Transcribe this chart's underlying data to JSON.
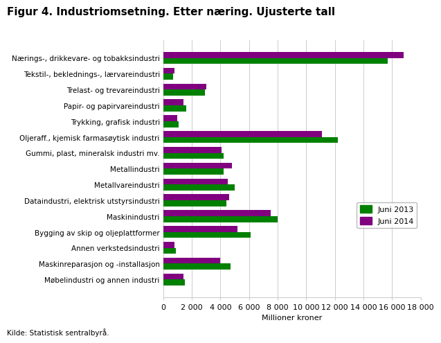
{
  "title": "Figur 4. Industriomsetning. Etter næring. Ujusterte tall",
  "categories": [
    "Nærings-, drikkevare- og tobakksindustri",
    "Tekstil-, beklednings-, lærvareindustri",
    "Trelast- og trevareindustri",
    "Papir- og papirvareindustri",
    "Trykking, grafisk industri",
    "Oljeraff., kjemisk farmasøytisk industri",
    "Gummi, plast, mineralsk industri mv.",
    "Metallindustri",
    "Metallvareindustri",
    "Dataindustri, elektrisk utstyrsindustri",
    "Maskinindustri",
    "Bygging av skip og oljeplattformer",
    "Annen verkstedsindustri",
    "Maskinreparasjon og -installasjon",
    "Møbelindustri og annen industri"
  ],
  "juni2013": [
    15700,
    700,
    2900,
    1600,
    1100,
    12200,
    4200,
    4200,
    5000,
    4400,
    8000,
    6100,
    900,
    4700,
    1500
  ],
  "juni2014": [
    16800,
    800,
    3000,
    1400,
    1000,
    11100,
    4100,
    4800,
    4500,
    4600,
    7500,
    5200,
    800,
    4000,
    1400
  ],
  "color2013": "#008000",
  "color2014": "#800080",
  "xlabel": "Millioner kroner",
  "xlim": [
    0,
    18000
  ],
  "xticks": [
    0,
    2000,
    4000,
    6000,
    8000,
    10000,
    12000,
    14000,
    16000,
    18000
  ],
  "xtick_labels": [
    "0",
    "2 000",
    "4 000",
    "6 000",
    "8 000",
    "10 000",
    "12 000",
    "14 000",
    "16 000",
    "18 000"
  ],
  "legend_labels": [
    "Juni 2013",
    "Juni 2014"
  ],
  "source": "Kilde: Statistisk sentralbyrå.",
  "background_color": "#ffffff",
  "grid_color": "#cccccc",
  "title_fontsize": 11,
  "label_fontsize": 7.5,
  "tick_fontsize": 8,
  "bar_height": 0.38
}
